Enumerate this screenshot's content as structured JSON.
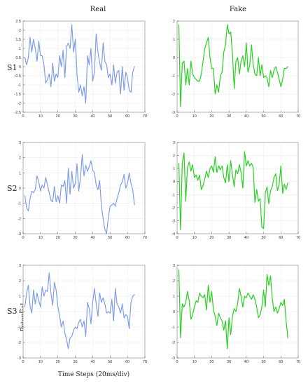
{
  "figure": {
    "column_titles": [
      "Real",
      "Fake"
    ],
    "row_labels": [
      "S1",
      "S2",
      "S3"
    ],
    "ylabel": "Potential",
    "xlabel": "Time Steps (20ms/div)"
  },
  "colors": {
    "real": "#7f9ee6",
    "fake": "#27d11f"
  },
  "chart_data": [
    {
      "type": "line",
      "subject": "S1",
      "column": "Real",
      "xlim": [
        0,
        70
      ],
      "ylim": [
        -2.5,
        2.5
      ],
      "xticks": [
        0,
        10,
        20,
        30,
        40,
        50,
        60,
        70
      ],
      "yticks": [
        -2.5,
        -2,
        -1.5,
        -1,
        -0.5,
        0,
        0.5,
        1,
        1.5,
        2,
        2.5
      ],
      "series": [
        {
          "color": "#7f9ee6",
          "x": [
            1,
            2,
            3,
            4,
            5,
            6,
            7,
            8,
            9,
            10,
            11,
            12,
            13,
            14,
            15,
            16,
            17,
            18,
            19,
            20,
            21,
            22,
            23,
            24,
            25,
            26,
            27,
            28,
            29,
            30,
            31,
            32,
            33,
            34,
            35,
            36,
            37,
            38,
            39,
            40,
            41,
            42,
            43,
            44,
            45,
            46,
            47,
            48,
            49,
            50,
            51,
            52,
            53,
            54,
            55,
            56,
            57,
            58,
            59,
            60,
            61,
            62,
            63,
            64
          ],
          "y": [
            0.5,
            0.1,
            0.5,
            1.6,
            0.8,
            1.5,
            1.0,
            0.3,
            1.4,
            0.6,
            0.6,
            0.1,
            -0.9,
            -0.7,
            -0.4,
            -1.1,
            0.2,
            -0.8,
            -0.4,
            -0.6,
            0.6,
            0.0,
            0.9,
            -0.6,
            1.1,
            1.3,
            1.0,
            2.3,
            0.8,
            1.5,
            -0.5,
            -1.4,
            -1.0,
            -1.6,
            -1.1,
            -2.0,
            0.6,
            0.1,
            1.0,
            -0.8,
            -0.3,
            1.8,
            0.8,
            0.2,
            -0.2,
            1.3,
            0.3,
            0.1,
            -0.6,
            -0.4,
            -1.0,
            0.1,
            -0.9,
            -0.3,
            -0.2,
            -1.5,
            0.0,
            -1.3,
            -0.3,
            -0.6,
            -1.3,
            -1.4,
            -0.3,
            0.0
          ]
        }
      ]
    },
    {
      "type": "line",
      "subject": "S1",
      "column": "Fake",
      "xlim": [
        0,
        70
      ],
      "ylim": [
        -3,
        2
      ],
      "xticks": [
        0,
        10,
        20,
        30,
        40,
        50,
        60,
        70
      ],
      "yticks": [
        -3,
        -2,
        -1,
        0,
        1,
        2
      ],
      "series": [
        {
          "color": "#27d11f",
          "x": [
            1,
            2,
            3,
            4,
            5,
            6,
            7,
            8,
            9,
            10,
            11,
            12,
            13,
            14,
            15,
            16,
            17,
            18,
            19,
            20,
            21,
            22,
            23,
            24,
            25,
            26,
            27,
            28,
            29,
            30,
            31,
            32,
            33,
            34,
            35,
            36,
            37,
            38,
            39,
            40,
            41,
            42,
            43,
            44,
            45,
            46,
            47,
            48,
            49,
            50,
            51,
            52,
            53,
            54,
            55,
            56,
            57,
            58,
            59,
            60,
            61,
            62,
            63,
            64
          ],
          "y": [
            1.8,
            -2.7,
            -0.3,
            -0.2,
            -1.5,
            -0.6,
            -1.5,
            -0.2,
            -0.9,
            -1.1,
            -1.2,
            -1.3,
            -1.3,
            -0.9,
            -0.2,
            0.5,
            0.8,
            1.1,
            0.0,
            -0.6,
            -0.6,
            -2.0,
            -1.5,
            -1.9,
            -1.0,
            -0.8,
            0.3,
            0.7,
            1.8,
            1.3,
            1.4,
            0.2,
            -1.7,
            -0.2,
            0.0,
            -0.9,
            -0.2,
            0.1,
            -0.5,
            0.8,
            -0.8,
            -0.4,
            0.7,
            -0.4,
            -0.9,
            -1.0,
            0.0,
            -1.0,
            -0.4,
            -1.1,
            -1.0,
            -1.1,
            -1.6,
            -0.7,
            -1.1,
            -0.7,
            -0.5,
            -0.8,
            -1.2,
            -1.6,
            -1.2,
            -0.6,
            -0.6,
            -0.5
          ]
        }
      ]
    },
    {
      "type": "line",
      "subject": "S2",
      "column": "Real",
      "xlim": [
        0,
        70
      ],
      "ylim": [
        -3,
        3
      ],
      "xticks": [
        0,
        10,
        20,
        30,
        40,
        50,
        60,
        70
      ],
      "yticks": [
        -3,
        -2,
        -1,
        0,
        1,
        2,
        3
      ],
      "series": [
        {
          "color": "#7f9ee6",
          "x": [
            1,
            2,
            3,
            4,
            5,
            6,
            7,
            8,
            9,
            10,
            11,
            12,
            13,
            14,
            15,
            16,
            17,
            18,
            19,
            20,
            21,
            22,
            23,
            24,
            25,
            26,
            27,
            28,
            29,
            30,
            31,
            32,
            33,
            34,
            35,
            36,
            37,
            38,
            39,
            40,
            41,
            42,
            43,
            44,
            45,
            46,
            47,
            48,
            49,
            50,
            51,
            52,
            53,
            54,
            55,
            56,
            57,
            58,
            59,
            60,
            61,
            62,
            63,
            64
          ],
          "y": [
            -0.5,
            -1.3,
            -1.5,
            -0.7,
            -0.2,
            -0.3,
            -0.1,
            0.8,
            0.4,
            -0.2,
            0.2,
            0.0,
            0.7,
            0.2,
            -0.3,
            -0.8,
            -0.9,
            0.1,
            -0.9,
            -0.5,
            -1.0,
            0.2,
            0.1,
            0.5,
            -1.0,
            1.3,
            -0.4,
            1.1,
            0.0,
            0.3,
            1.6,
            -0.2,
            0.7,
            2.2,
            0.8,
            1.5,
            1.1,
            1.4,
            1.8,
            1.2,
            1.0,
            0.2,
            -0.1,
            0.5,
            -1.2,
            -2.0,
            -2.7,
            -3.0,
            -1.9,
            -1.2,
            -1.1,
            -1.0,
            -1.2,
            -0.7,
            -0.3,
            0.2,
            0.4,
            0.9,
            0.0,
            0.3,
            1.0,
            0.3,
            -0.1,
            -1.1
          ]
        }
      ]
    },
    {
      "type": "line",
      "subject": "S2",
      "column": "Fake",
      "xlim": [
        0,
        70
      ],
      "ylim": [
        -4,
        3
      ],
      "xticks": [
        0,
        10,
        20,
        30,
        40,
        50,
        60,
        70
      ],
      "yticks": [
        -4,
        -3,
        -2,
        -1,
        0,
        1,
        2,
        3
      ],
      "series": [
        {
          "color": "#27d11f",
          "x": [
            1,
            2,
            3,
            4,
            5,
            6,
            7,
            8,
            9,
            10,
            11,
            12,
            13,
            14,
            15,
            16,
            17,
            18,
            19,
            20,
            21,
            22,
            23,
            24,
            25,
            26,
            27,
            28,
            29,
            30,
            31,
            32,
            33,
            34,
            35,
            36,
            37,
            38,
            39,
            40,
            41,
            42,
            43,
            44,
            45,
            46,
            47,
            48,
            49,
            50,
            51,
            52,
            53,
            54,
            55,
            56,
            57,
            58,
            59,
            60,
            61,
            62,
            63,
            64
          ],
          "y": [
            1.4,
            -3.7,
            1.4,
            2.2,
            -1.5,
            1.1,
            1.5,
            0.8,
            1.3,
            0.3,
            0.5,
            0.1,
            0.5,
            -0.6,
            -0.3,
            0.2,
            0.8,
            0.3,
            1.0,
            1.2,
            0.7,
            1.9,
            0.7,
            1.2,
            0.9,
            1.2,
            0.3,
            -0.1,
            1.3,
            0.0,
            1.6,
            0.5,
            -0.4,
            0.9,
            0.6,
            1.3,
            0.7,
            -0.5,
            2.3,
            1.2,
            1.6,
            1.2,
            1.4,
            1.1,
            -1.6,
            -0.6,
            -1.5,
            -1.3,
            -3.5,
            -3.6,
            -0.9,
            -0.4,
            -1.7,
            -0.7,
            -0.4,
            0.3,
            0.6,
            -0.7,
            -0.2,
            1.2,
            -0.9,
            -0.2,
            -0.6,
            -0.1
          ]
        }
      ]
    },
    {
      "type": "line",
      "subject": "S3",
      "column": "Real",
      "xlim": [
        0,
        70
      ],
      "ylim": [
        -3,
        3
      ],
      "xticks": [
        0,
        10,
        20,
        30,
        40,
        50,
        60,
        70
      ],
      "yticks": [
        -3,
        -2,
        -1,
        0,
        1,
        2,
        3
      ],
      "series": [
        {
          "color": "#7f9ee6",
          "x": [
            1,
            2,
            3,
            4,
            5,
            6,
            7,
            8,
            9,
            10,
            11,
            12,
            13,
            14,
            15,
            16,
            17,
            18,
            19,
            20,
            21,
            22,
            23,
            24,
            25,
            26,
            27,
            28,
            29,
            30,
            31,
            32,
            33,
            34,
            35,
            36,
            37,
            38,
            39,
            40,
            41,
            42,
            43,
            44,
            45,
            46,
            47,
            48,
            49,
            50,
            51,
            52,
            53,
            54,
            55,
            56,
            57,
            58,
            59,
            60,
            61,
            62,
            63,
            64
          ],
          "y": [
            0.3,
            1.2,
            1.7,
            0.4,
            -0.1,
            1.4,
            0.5,
            1.2,
            0.7,
            0.3,
            1.6,
            1.0,
            1.4,
            1.3,
            2.5,
            1.2,
            0.4,
            1.9,
            1.4,
            0.3,
            -0.3,
            -1.0,
            -0.6,
            -1.4,
            -1.8,
            -2.4,
            -1.7,
            -1.6,
            -1.2,
            -1.0,
            -1.1,
            -0.7,
            -0.5,
            -1.0,
            -0.6,
            -1.6,
            0.6,
            0.2,
            -0.8,
            0.6,
            1.5,
            0.5,
            -0.3,
            1.2,
            0.6,
            0.9,
            0.5,
            -0.1,
            0.0,
            -0.1,
            0.8,
            -0.6,
            1.5,
            0.5,
            0.3,
            -0.1,
            0.5,
            -0.4,
            -0.2,
            -0.3,
            -1.1,
            0.6,
            1.0,
            1.1
          ]
        }
      ]
    },
    {
      "type": "line",
      "subject": "S3",
      "column": "Fake",
      "xlim": [
        0,
        70
      ],
      "ylim": [
        -3,
        3
      ],
      "xticks": [
        0,
        10,
        20,
        30,
        40,
        50,
        60,
        70
      ],
      "yticks": [
        -3,
        -2,
        -1,
        0,
        1,
        2,
        3
      ],
      "series": [
        {
          "color": "#27d11f",
          "x": [
            1,
            2,
            3,
            4,
            5,
            6,
            7,
            8,
            9,
            10,
            11,
            12,
            13,
            14,
            15,
            16,
            17,
            18,
            19,
            20,
            21,
            22,
            23,
            24,
            25,
            26,
            27,
            28,
            29,
            30,
            31,
            32,
            33,
            34,
            35,
            36,
            37,
            38,
            39,
            40,
            41,
            42,
            43,
            44,
            45,
            46,
            47,
            48,
            49,
            50,
            51,
            52,
            53,
            54,
            55,
            56,
            57,
            58,
            59,
            60,
            61,
            62,
            63,
            64
          ],
          "y": [
            2.7,
            -1.7,
            0.5,
            0.3,
            0.6,
            1.3,
            0.7,
            -0.5,
            -0.2,
            0.3,
            0.7,
            0.6,
            1.2,
            1.0,
            0.9,
            1.1,
            0.1,
            1.7,
            0.6,
            1.3,
            0.1,
            -0.3,
            -0.9,
            -0.1,
            -0.4,
            -0.6,
            -1.2,
            -0.6,
            -2.4,
            -0.4,
            -1.5,
            -0.3,
            0.2,
            0.0,
            0.5,
            1.5,
            1.0,
            0.3,
            1.0,
            0.9,
            1.2,
            1.0,
            0.8,
            1.1,
            0.8,
            0.3,
            -0.4,
            -0.2,
            0.3,
            1.4,
            0.3,
            2.4,
            1.7,
            2.3,
            0.9,
            0.0,
            0.3,
            -0.1,
            0.2,
            0.6,
            0.4,
            0.8,
            -0.6,
            -1.7
          ]
        }
      ]
    }
  ]
}
